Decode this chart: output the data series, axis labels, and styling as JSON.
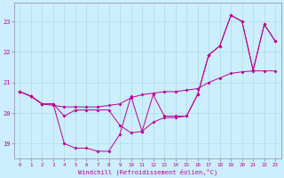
{
  "xlabel": "Windchill (Refroidissement éolien,°C)",
  "background_color": "#cceeff",
  "grid_color": "#aadddd",
  "line_color": "#bb0099",
  "spine_color": "#9999bb",
  "x_hours": [
    0,
    1,
    2,
    3,
    4,
    5,
    6,
    7,
    8,
    9,
    10,
    11,
    12,
    13,
    14,
    15,
    16,
    17,
    18,
    19,
    20,
    21,
    22,
    23
  ],
  "temp_line": [
    20.7,
    20.55,
    20.3,
    20.25,
    20.2,
    20.2,
    20.2,
    20.2,
    20.25,
    20.3,
    20.5,
    20.6,
    20.65,
    20.7,
    20.7,
    20.75,
    20.8,
    21.0,
    21.15,
    21.3,
    21.35,
    21.38,
    21.38,
    21.38
  ],
  "windchill_line": [
    20.7,
    20.55,
    20.3,
    20.3,
    19.0,
    18.85,
    18.85,
    18.75,
    18.75,
    19.3,
    20.55,
    19.4,
    20.6,
    19.9,
    19.9,
    19.9,
    20.6,
    21.9,
    22.2,
    23.2,
    23.0,
    21.4,
    22.9,
    22.35
  ],
  "upper_line": [
    20.7,
    20.55,
    20.3,
    20.3,
    19.9,
    20.1,
    20.1,
    20.1,
    20.1,
    19.6,
    19.35,
    19.4,
    19.7,
    19.85,
    19.85,
    19.9,
    20.6,
    21.9,
    22.2,
    23.2,
    23.0,
    21.4,
    22.9,
    22.35
  ],
  "ylim": [
    18.5,
    23.6
  ],
  "yticks": [
    19,
    20,
    21,
    22,
    23
  ],
  "xticks": [
    0,
    1,
    2,
    3,
    4,
    5,
    6,
    7,
    8,
    9,
    10,
    11,
    12,
    13,
    14,
    15,
    16,
    17,
    18,
    19,
    20,
    21,
    22,
    23
  ]
}
